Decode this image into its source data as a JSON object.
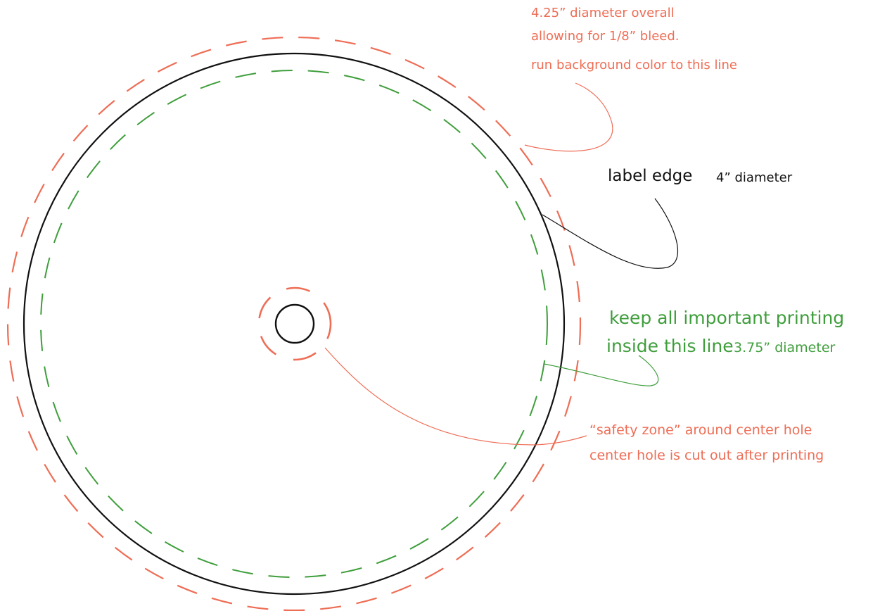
{
  "colors": {
    "bleed": "#ee6d55",
    "edge": "#111111",
    "safe": "#3f9e3c",
    "hole_zone": "#ee6d55"
  },
  "labels": {
    "bleed": {
      "line1": "4.25” diameter overall",
      "line2": "allowing for 1/8” bleed.",
      "line3": "run background color to this line"
    },
    "edge": {
      "main": "label edge",
      "size": "4” diameter"
    },
    "safe": {
      "line1": "keep all important printing",
      "line2": "inside this line",
      "size": "3.75” diameter"
    },
    "hole": {
      "line1": "“safety zone” around center hole",
      "line2": "center hole is cut out after printing"
    }
  }
}
